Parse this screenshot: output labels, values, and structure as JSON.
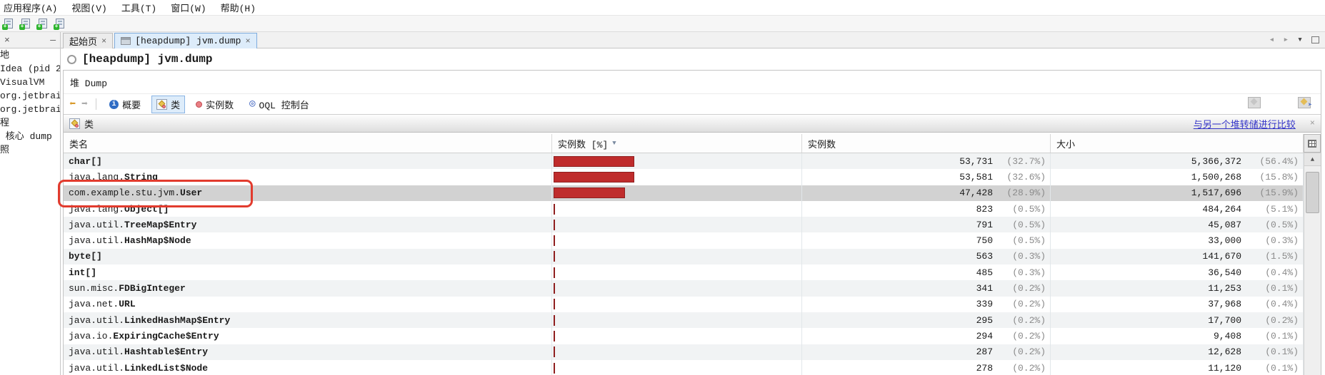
{
  "menu_bar": {
    "items": [
      "应用程序(A)",
      "视图(V)",
      "工具(T)",
      "窗口(W)",
      "帮助(H)"
    ]
  },
  "icon_toolbar": {
    "icons": [
      "add-application-icon",
      "add-jmx-connection-icon",
      "add-vm-coredump-icon",
      "add-snapshot-icon"
    ]
  },
  "side_tabstrip": {
    "close": "×",
    "minimize": "—"
  },
  "tabs": [
    {
      "label": "起始页",
      "close": "×",
      "active": false
    },
    {
      "label": "[heapdump] jvm.dump",
      "close": "×",
      "active": true
    }
  ],
  "sidebar": {
    "items": [
      "地",
      "Idea (pid 2",
      "VisualVM",
      "org.jetbrai",
      "org.jetbrai",
      "程",
      " 核心 dump",
      "照"
    ]
  },
  "heap_view": {
    "title": "[heapdump] jvm.dump",
    "subtab": "堆 Dump",
    "nav": {
      "summary": "概要",
      "classes": "类",
      "instances": "实例数",
      "oql": "OQL 控制台"
    },
    "section_title": "类",
    "compare_link": "与另一个堆转储进行比较",
    "section_close": "×"
  },
  "table": {
    "columns": {
      "class_name": "类名",
      "instances_pct": "实例数 [%]",
      "instances": "实例数",
      "size": "大小"
    },
    "rows": [
      {
        "pkg": "",
        "cls": "char[]",
        "bar_pct": 32.7,
        "inst": "53,731",
        "inst_pct": "(32.7%)",
        "size": "5,366,372",
        "size_pct": "(56.4%)",
        "striped": true,
        "selected": false
      },
      {
        "pkg": "java.lang.",
        "cls": "String",
        "bar_pct": 32.6,
        "inst": "53,581",
        "inst_pct": "(32.6%)",
        "size": "1,500,268",
        "size_pct": "(15.8%)",
        "striped": false,
        "selected": false
      },
      {
        "pkg": "com.example.stu.jvm.",
        "cls": "User",
        "bar_pct": 28.9,
        "inst": "47,428",
        "inst_pct": "(28.9%)",
        "size": "1,517,696",
        "size_pct": "(15.9%)",
        "striped": false,
        "selected": true
      },
      {
        "pkg": "java.lang.",
        "cls": "Object[]",
        "bar_pct": 0.5,
        "inst": "823",
        "inst_pct": "(0.5%)",
        "size": "484,264",
        "size_pct": "(5.1%)",
        "striped": false,
        "selected": false
      },
      {
        "pkg": "java.util.",
        "cls": "TreeMap$Entry",
        "bar_pct": 0.5,
        "inst": "791",
        "inst_pct": "(0.5%)",
        "size": "45,087",
        "size_pct": "(0.5%)",
        "striped": true,
        "selected": false
      },
      {
        "pkg": "java.util.",
        "cls": "HashMap$Node",
        "bar_pct": 0.5,
        "inst": "750",
        "inst_pct": "(0.5%)",
        "size": "33,000",
        "size_pct": "(0.3%)",
        "striped": false,
        "selected": false
      },
      {
        "pkg": "",
        "cls": "byte[]",
        "bar_pct": 0.3,
        "inst": "563",
        "inst_pct": "(0.3%)",
        "size": "141,670",
        "size_pct": "(1.5%)",
        "striped": true,
        "selected": false
      },
      {
        "pkg": "",
        "cls": "int[]",
        "bar_pct": 0.3,
        "inst": "485",
        "inst_pct": "(0.3%)",
        "size": "36,540",
        "size_pct": "(0.4%)",
        "striped": false,
        "selected": false
      },
      {
        "pkg": "sun.misc.",
        "cls": "FDBigInteger",
        "bar_pct": 0.2,
        "inst": "341",
        "inst_pct": "(0.2%)",
        "size": "11,253",
        "size_pct": "(0.1%)",
        "striped": true,
        "selected": false
      },
      {
        "pkg": "java.net.",
        "cls": "URL",
        "bar_pct": 0.2,
        "inst": "339",
        "inst_pct": "(0.2%)",
        "size": "37,968",
        "size_pct": "(0.4%)",
        "striped": false,
        "selected": false
      },
      {
        "pkg": "java.util.",
        "cls": "LinkedHashMap$Entry",
        "bar_pct": 0.2,
        "inst": "295",
        "inst_pct": "(0.2%)",
        "size": "17,700",
        "size_pct": "(0.2%)",
        "striped": true,
        "selected": false
      },
      {
        "pkg": "java.io.",
        "cls": "ExpiringCache$Entry",
        "bar_pct": 0.2,
        "inst": "294",
        "inst_pct": "(0.2%)",
        "size": "9,408",
        "size_pct": "(0.1%)",
        "striped": false,
        "selected": false
      },
      {
        "pkg": "java.util.",
        "cls": "Hashtable$Entry",
        "bar_pct": 0.2,
        "inst": "287",
        "inst_pct": "(0.2%)",
        "size": "12,628",
        "size_pct": "(0.1%)",
        "striped": true,
        "selected": false
      },
      {
        "pkg": "java.util.",
        "cls": "LinkedList$Node",
        "bar_pct": 0.2,
        "inst": "278",
        "inst_pct": "(0.2%)",
        "size": "11,120",
        "size_pct": "(0.1%)",
        "striped": false,
        "selected": false
      }
    ]
  },
  "colors": {
    "bar": "#bf2c2c",
    "link": "#3434c8",
    "annotation": "#e23b2e",
    "selection": "#d2d2d2",
    "stripe": "#f1f3f4"
  }
}
